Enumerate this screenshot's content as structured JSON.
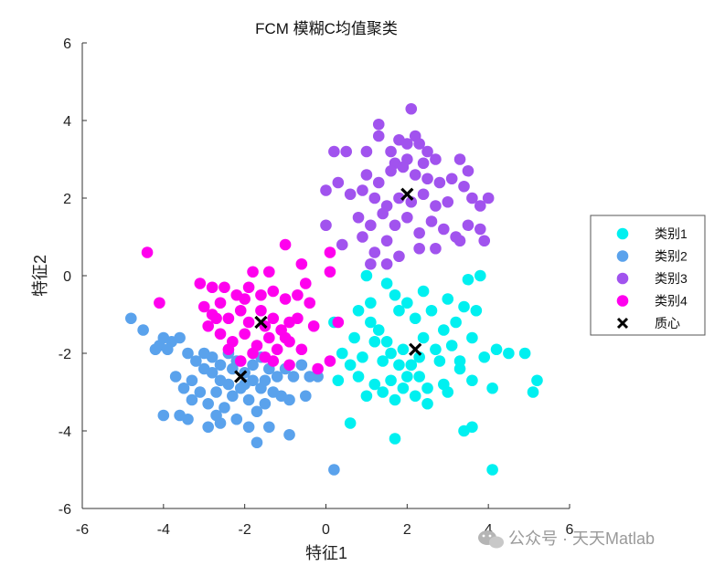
{
  "chart_data": {
    "type": "scatter",
    "title": "FCM 模糊C均值聚类",
    "xlabel": "特征1",
    "ylabel": "特征2",
    "xlim": [
      -6,
      6
    ],
    "ylim": [
      -6,
      6
    ],
    "xticks": [
      "-6",
      "-4",
      "-2",
      "0",
      "2",
      "4",
      "6"
    ],
    "yticks": [
      "-6",
      "-4",
      "-2",
      "0",
      "2",
      "4",
      "6"
    ],
    "grid": false,
    "legend_position": "right",
    "series": [
      {
        "name": "类别1",
        "color": "#00f0f0",
        "points": [
          [
            1.0,
            0.0
          ],
          [
            1.5,
            -0.2
          ],
          [
            1.7,
            -0.5
          ],
          [
            1.8,
            -0.9
          ],
          [
            2.0,
            -0.7
          ],
          [
            2.2,
            -1.1
          ],
          [
            2.6,
            -0.9
          ],
          [
            3.0,
            -0.6
          ],
          [
            3.4,
            -0.8
          ],
          [
            3.7,
            -0.9
          ],
          [
            3.5,
            -0.1
          ],
          [
            3.8,
            0.0
          ],
          [
            0.8,
            -0.9
          ],
          [
            1.1,
            -1.2
          ],
          [
            1.3,
            -1.4
          ],
          [
            1.5,
            -1.7
          ],
          [
            1.6,
            -2.0
          ],
          [
            1.8,
            -2.3
          ],
          [
            2.0,
            -2.6
          ],
          [
            2.3,
            -2.1
          ],
          [
            2.4,
            -1.6
          ],
          [
            2.7,
            -1.9
          ],
          [
            2.9,
            -1.4
          ],
          [
            3.1,
            -1.8
          ],
          [
            3.3,
            -2.2
          ],
          [
            3.6,
            -1.6
          ],
          [
            3.9,
            -2.1
          ],
          [
            4.2,
            -1.9
          ],
          [
            4.5,
            -2.0
          ],
          [
            4.9,
            -2.0
          ],
          [
            5.2,
            -2.7
          ],
          [
            5.1,
            -3.0
          ],
          [
            4.1,
            -2.9
          ],
          [
            3.6,
            -2.7
          ],
          [
            3.3,
            -2.4
          ],
          [
            2.9,
            -2.8
          ],
          [
            2.5,
            -2.9
          ],
          [
            2.2,
            -3.1
          ],
          [
            1.9,
            -2.9
          ],
          [
            1.6,
            -2.7
          ],
          [
            1.4,
            -3.0
          ],
          [
            1.2,
            -2.8
          ],
          [
            1.0,
            -3.1
          ],
          [
            0.8,
            -2.6
          ],
          [
            0.6,
            -2.3
          ],
          [
            0.4,
            -2.0
          ],
          [
            0.3,
            -2.7
          ],
          [
            0.6,
            -3.8
          ],
          [
            1.7,
            -4.2
          ],
          [
            3.6,
            -3.9
          ],
          [
            4.1,
            -5.0
          ],
          [
            3.4,
            -4.0
          ],
          [
            0.2,
            -1.2
          ],
          [
            1.9,
            -1.9
          ],
          [
            2.1,
            -2.3
          ],
          [
            2.3,
            -2.6
          ],
          [
            1.4,
            -2.2
          ],
          [
            1.2,
            -1.7
          ],
          [
            0.7,
            -1.6
          ],
          [
            2.8,
            -2.2
          ],
          [
            3.0,
            -3.0
          ],
          [
            2.5,
            -3.3
          ],
          [
            1.7,
            -3.2
          ],
          [
            0.9,
            -2.1
          ],
          [
            1.1,
            -0.7
          ],
          [
            2.4,
            -0.4
          ],
          [
            3.2,
            -1.2
          ]
        ]
      },
      {
        "name": "类别2",
        "color": "#5aa2ec",
        "points": [
          [
            -4.8,
            -1.1
          ],
          [
            -4.5,
            -1.4
          ],
          [
            -4.2,
            -1.9
          ],
          [
            -4.0,
            -1.6
          ],
          [
            -3.8,
            -1.7
          ],
          [
            -3.6,
            -1.6
          ],
          [
            -3.4,
            -2.0
          ],
          [
            -3.2,
            -2.2
          ],
          [
            -3.0,
            -2.0
          ],
          [
            -2.8,
            -2.1
          ],
          [
            -2.6,
            -2.3
          ],
          [
            -2.4,
            -2.0
          ],
          [
            -2.2,
            -2.2
          ],
          [
            -2.0,
            -2.5
          ],
          [
            -1.8,
            -2.3
          ],
          [
            -1.6,
            -2.1
          ],
          [
            -1.4,
            -2.4
          ],
          [
            -1.2,
            -2.6
          ],
          [
            -1.0,
            -2.4
          ],
          [
            -0.8,
            -2.6
          ],
          [
            -0.6,
            -2.3
          ],
          [
            -0.4,
            -2.6
          ],
          [
            -0.2,
            -2.6
          ],
          [
            -3.7,
            -2.6
          ],
          [
            -3.5,
            -2.9
          ],
          [
            -3.3,
            -3.2
          ],
          [
            -3.1,
            -3.0
          ],
          [
            -2.9,
            -3.3
          ],
          [
            -2.7,
            -3.6
          ],
          [
            -2.5,
            -3.4
          ],
          [
            -2.3,
            -3.1
          ],
          [
            -2.1,
            -2.9
          ],
          [
            -1.9,
            -3.2
          ],
          [
            -1.7,
            -3.5
          ],
          [
            -1.5,
            -3.3
          ],
          [
            -1.3,
            -3.0
          ],
          [
            -1.1,
            -3.1
          ],
          [
            -0.9,
            -3.2
          ],
          [
            -0.5,
            -3.1
          ],
          [
            -4.0,
            -3.6
          ],
          [
            -3.6,
            -3.6
          ],
          [
            -3.4,
            -3.7
          ],
          [
            -2.9,
            -3.9
          ],
          [
            -2.6,
            -3.8
          ],
          [
            -2.2,
            -3.7
          ],
          [
            -1.9,
            -3.9
          ],
          [
            -1.7,
            -4.3
          ],
          [
            -1.4,
            -3.9
          ],
          [
            -0.9,
            -4.1
          ],
          [
            0.2,
            -5.0
          ],
          [
            -2.8,
            -2.5
          ],
          [
            -2.6,
            -2.7
          ],
          [
            -2.4,
            -2.8
          ],
          [
            -2.0,
            -2.8
          ],
          [
            -1.8,
            -2.7
          ],
          [
            -1.6,
            -2.9
          ],
          [
            -3.0,
            -2.4
          ],
          [
            -3.3,
            -2.7
          ],
          [
            -2.7,
            -3.0
          ],
          [
            -2.3,
            -2.4
          ],
          [
            -1.5,
            -2.7
          ],
          [
            -4.1,
            -1.8
          ],
          [
            -3.9,
            -1.9
          ]
        ]
      },
      {
        "name": "类别3",
        "color": "#a153ee",
        "points": [
          [
            1.0,
            3.2
          ],
          [
            1.3,
            3.6
          ],
          [
            1.6,
            3.2
          ],
          [
            1.3,
            3.9
          ],
          [
            1.8,
            3.5
          ],
          [
            2.2,
            3.6
          ],
          [
            2.0,
            3.4
          ],
          [
            2.5,
            3.2
          ],
          [
            2.1,
            4.3
          ],
          [
            2.3,
            3.4
          ],
          [
            1.7,
            2.9
          ],
          [
            2.0,
            3.0
          ],
          [
            2.4,
            2.9
          ],
          [
            2.7,
            3.0
          ],
          [
            3.3,
            3.0
          ],
          [
            3.5,
            2.7
          ],
          [
            1.0,
            2.6
          ],
          [
            1.3,
            2.4
          ],
          [
            1.6,
            2.7
          ],
          [
            1.9,
            2.8
          ],
          [
            2.2,
            2.6
          ],
          [
            2.5,
            2.5
          ],
          [
            2.8,
            2.4
          ],
          [
            3.1,
            2.5
          ],
          [
            3.4,
            2.3
          ],
          [
            3.6,
            2.0
          ],
          [
            3.8,
            1.8
          ],
          [
            4.0,
            2.0
          ],
          [
            0.5,
            3.2
          ],
          [
            0.2,
            3.2
          ],
          [
            0.3,
            2.4
          ],
          [
            0.6,
            2.1
          ],
          [
            0.9,
            2.2
          ],
          [
            1.2,
            2.0
          ],
          [
            1.5,
            1.8
          ],
          [
            1.8,
            2.0
          ],
          [
            2.1,
            1.9
          ],
          [
            2.4,
            2.1
          ],
          [
            2.7,
            1.8
          ],
          [
            3.0,
            1.9
          ],
          [
            0.8,
            1.5
          ],
          [
            1.1,
            1.3
          ],
          [
            1.4,
            1.6
          ],
          [
            1.7,
            1.3
          ],
          [
            2.0,
            1.5
          ],
          [
            2.3,
            1.1
          ],
          [
            2.6,
            1.4
          ],
          [
            2.9,
            1.2
          ],
          [
            3.2,
            1.0
          ],
          [
            3.5,
            1.3
          ],
          [
            3.8,
            1.2
          ],
          [
            3.9,
            0.9
          ],
          [
            3.3,
            0.9
          ],
          [
            0.0,
            1.3
          ],
          [
            0.4,
            0.8
          ],
          [
            0.9,
            1.0
          ],
          [
            1.2,
            0.6
          ],
          [
            1.5,
            0.9
          ],
          [
            1.8,
            0.5
          ],
          [
            2.3,
            0.7
          ],
          [
            2.7,
            0.7
          ],
          [
            0.0,
            2.2
          ],
          [
            1.1,
            0.3
          ],
          [
            1.5,
            0.3
          ]
        ]
      },
      {
        "name": "类别4",
        "color": "#ff00ee",
        "points": [
          [
            -4.4,
            0.6
          ],
          [
            -4.1,
            -0.7
          ],
          [
            -3.1,
            -0.2
          ],
          [
            -2.8,
            -0.3
          ],
          [
            -2.5,
            -0.3
          ],
          [
            -2.2,
            -0.5
          ],
          [
            -1.9,
            -0.3
          ],
          [
            -1.6,
            -0.5
          ],
          [
            -1.3,
            -0.4
          ],
          [
            -1.0,
            -0.6
          ],
          [
            -0.7,
            -0.5
          ],
          [
            -0.5,
            -0.2
          ],
          [
            -1.8,
            0.1
          ],
          [
            -1.4,
            0.1
          ],
          [
            -1.0,
            0.8
          ],
          [
            -0.6,
            0.3
          ],
          [
            0.1,
            0.6
          ],
          [
            0.1,
            0.1
          ],
          [
            -3.0,
            -0.8
          ],
          [
            -2.8,
            -1.0
          ],
          [
            -2.6,
            -0.7
          ],
          [
            -2.4,
            -1.1
          ],
          [
            -2.1,
            -0.9
          ],
          [
            -1.9,
            -1.2
          ],
          [
            -1.6,
            -0.9
          ],
          [
            -1.3,
            -1.1
          ],
          [
            -1.1,
            -1.4
          ],
          [
            -0.9,
            -1.2
          ],
          [
            -0.7,
            -1.1
          ],
          [
            -0.4,
            -0.7
          ],
          [
            -0.3,
            -1.3
          ],
          [
            -2.9,
            -1.3
          ],
          [
            -2.6,
            -1.5
          ],
          [
            -2.3,
            -1.7
          ],
          [
            -2.0,
            -1.5
          ],
          [
            -1.7,
            -1.8
          ],
          [
            -1.4,
            -1.6
          ],
          [
            -1.2,
            -1.9
          ],
          [
            -0.9,
            -1.7
          ],
          [
            -0.6,
            -1.9
          ],
          [
            -2.4,
            -1.9
          ],
          [
            -2.1,
            -2.2
          ],
          [
            -1.8,
            -2.0
          ],
          [
            -1.5,
            -2.1
          ],
          [
            -1.3,
            -2.2
          ],
          [
            -0.9,
            -2.3
          ],
          [
            0.3,
            -1.2
          ],
          [
            0.1,
            -2.2
          ],
          [
            -0.2,
            -2.4
          ],
          [
            -2.7,
            -1.1
          ],
          [
            -2.0,
            -0.6
          ],
          [
            -1.5,
            -1.3
          ],
          [
            -1.0,
            -1.6
          ]
        ]
      }
    ],
    "centroids": {
      "name": "质心",
      "color": "#000000",
      "marker": "x",
      "points": [
        [
          2.0,
          2.1
        ],
        [
          -1.6,
          -1.2
        ],
        [
          2.2,
          -1.9
        ],
        [
          -2.1,
          -2.6
        ]
      ]
    }
  },
  "watermark": {
    "icon": "wechat-icon",
    "text": "公众号 · 天天Matlab"
  }
}
